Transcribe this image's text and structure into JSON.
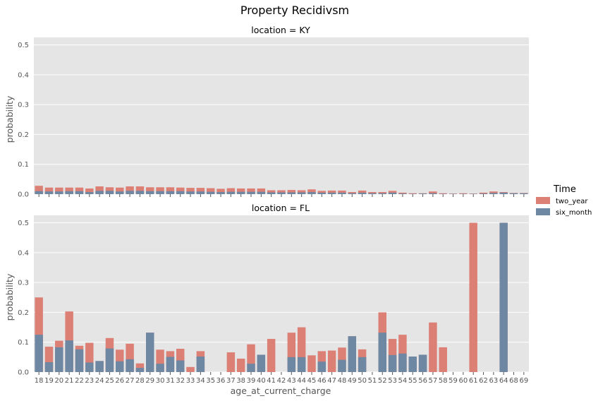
{
  "chart_data": {
    "type": "bar",
    "title": "Property Recidivsm",
    "xlabel": "age_at_current_charge",
    "ylabel": "probability",
    "ylim": [
      0,
      0.525
    ],
    "yticks": [
      "0.0",
      "0.1",
      "0.2",
      "0.3",
      "0.4",
      "0.5"
    ],
    "ytick_values": [
      0,
      0.1,
      0.2,
      0.3,
      0.4,
      0.5
    ],
    "grid": true,
    "legend_position": "right",
    "legend_title": "Time",
    "colors": {
      "two_year": "#dc7f75",
      "six_month": "#6e87a3",
      "panel_bg": "#e5e5e5"
    },
    "categories": [
      "18",
      "19",
      "20",
      "21",
      "22",
      "23",
      "24",
      "25",
      "26",
      "27",
      "28",
      "29",
      "30",
      "31",
      "32",
      "33",
      "34",
      "35",
      "36",
      "37",
      "38",
      "39",
      "40",
      "41",
      "42",
      "43",
      "44",
      "45",
      "46",
      "47",
      "48",
      "49",
      "50",
      "51",
      "52",
      "53",
      "54",
      "55",
      "56",
      "57",
      "58",
      "59",
      "60",
      "61",
      "62",
      "63",
      "64",
      "68",
      "69"
    ],
    "panels": [
      {
        "title": "location = KY",
        "series": [
          {
            "name": "two_year",
            "values": [
              0.028,
              0.022,
              0.022,
              0.022,
              0.022,
              0.019,
              0.026,
              0.023,
              0.022,
              0.026,
              0.026,
              0.023,
              0.023,
              0.023,
              0.022,
              0.021,
              0.021,
              0.02,
              0.018,
              0.02,
              0.019,
              0.019,
              0.019,
              0.013,
              0.013,
              0.014,
              0.013,
              0.016,
              0.011,
              0.012,
              0.012,
              0.007,
              0.012,
              0.007,
              0.007,
              0.011,
              0.005,
              0.003,
              0.003,
              0.009,
              0.003,
              0.002,
              0.003,
              0.002,
              0.005,
              0.009,
              0.007,
              0.004,
              0.004
            ]
          },
          {
            "name": "six_month",
            "values": [
              0.01,
              0.009,
              0.009,
              0.01,
              0.01,
              0.007,
              0.011,
              0.011,
              0.009,
              0.011,
              0.011,
              0.01,
              0.01,
              0.01,
              0.01,
              0.009,
              0.009,
              0.008,
              0.007,
              0.008,
              0.008,
              0.008,
              0.008,
              0.006,
              0.006,
              0.006,
              0.006,
              0.007,
              0.005,
              0.005,
              0.005,
              0.003,
              0.005,
              0.003,
              0.003,
              0.005,
              0.002,
              0.001,
              0.002,
              0.003,
              0.001,
              0.001,
              0.001,
              0.001,
              0.002,
              0.004,
              0.005,
              0.003,
              0.003
            ]
          }
        ]
      },
      {
        "title": "location = FL",
        "series": [
          {
            "name": "two_year",
            "values": [
              0.25,
              0.085,
              0.105,
              0.203,
              0.088,
              0.098,
              0.037,
              0.114,
              0.075,
              0.095,
              0.029,
              0.132,
              0.075,
              0.07,
              0.078,
              0.017,
              0.07,
              0,
              0,
              0.066,
              0.045,
              0.093,
              0.058,
              0.111,
              0,
              0.132,
              0.15,
              0.056,
              0.07,
              0.072,
              0.082,
              0.12,
              0.076,
              0,
              0.2,
              0.111,
              0.125,
              0.052,
              0.058,
              0.166,
              0.083,
              0,
              0,
              0.5,
              0,
              0,
              0.5,
              0,
              0
            ]
          },
          {
            "name": "six_month",
            "values": [
              0.125,
              0.033,
              0.083,
              0.106,
              0.076,
              0.032,
              0.037,
              0.079,
              0.036,
              0.043,
              0.014,
              0.132,
              0.028,
              0.051,
              0.039,
              0,
              0.052,
              0,
              0,
              0,
              0,
              0.028,
              0.058,
              0,
              0,
              0.05,
              0.05,
              0,
              0.035,
              0,
              0.041,
              0.12,
              0.05,
              0,
              0.132,
              0.057,
              0.062,
              0.052,
              0.058,
              0,
              0,
              0,
              0,
              0,
              0,
              0,
              0.5,
              0,
              0
            ]
          }
        ]
      }
    ]
  }
}
